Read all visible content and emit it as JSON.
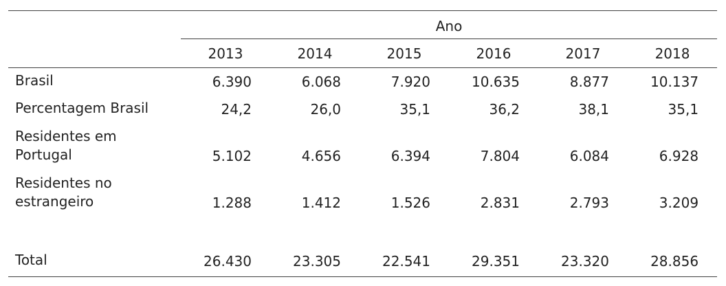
{
  "table": {
    "spanner_label": "Ano",
    "columns": [
      "2013",
      "2014",
      "2015",
      "2016",
      "2017",
      "2018"
    ],
    "rows": [
      {
        "label": "Brasil",
        "values": [
          "6.390",
          "6.068",
          "7.920",
          "10.635",
          "8.877",
          "10.137"
        ]
      },
      {
        "label": "Percentagem Brasil",
        "values": [
          "24,2",
          "26,0",
          "35,1",
          "36,2",
          "38,1",
          "35,1"
        ]
      },
      {
        "label": "Residentes em\nPortugal",
        "values": [
          "5.102",
          "4.656",
          "6.394",
          "7.804",
          "6.084",
          "6.928"
        ]
      },
      {
        "label": "Residentes no\nestrangeiro",
        "values": [
          "1.288",
          "1.412",
          "1.526",
          "2.831",
          "2.793",
          "3.209"
        ]
      },
      {
        "label": "",
        "values": [
          "",
          "",
          "",
          "",
          "",
          ""
        ]
      },
      {
        "label": "Total",
        "values": [
          "26.430",
          "23.305",
          "22.541",
          "29.351",
          "23.320",
          "28.856"
        ]
      }
    ],
    "colors": {
      "text": "#212121",
      "rule": "#3f3f3f",
      "background": "#ffffff"
    }
  }
}
